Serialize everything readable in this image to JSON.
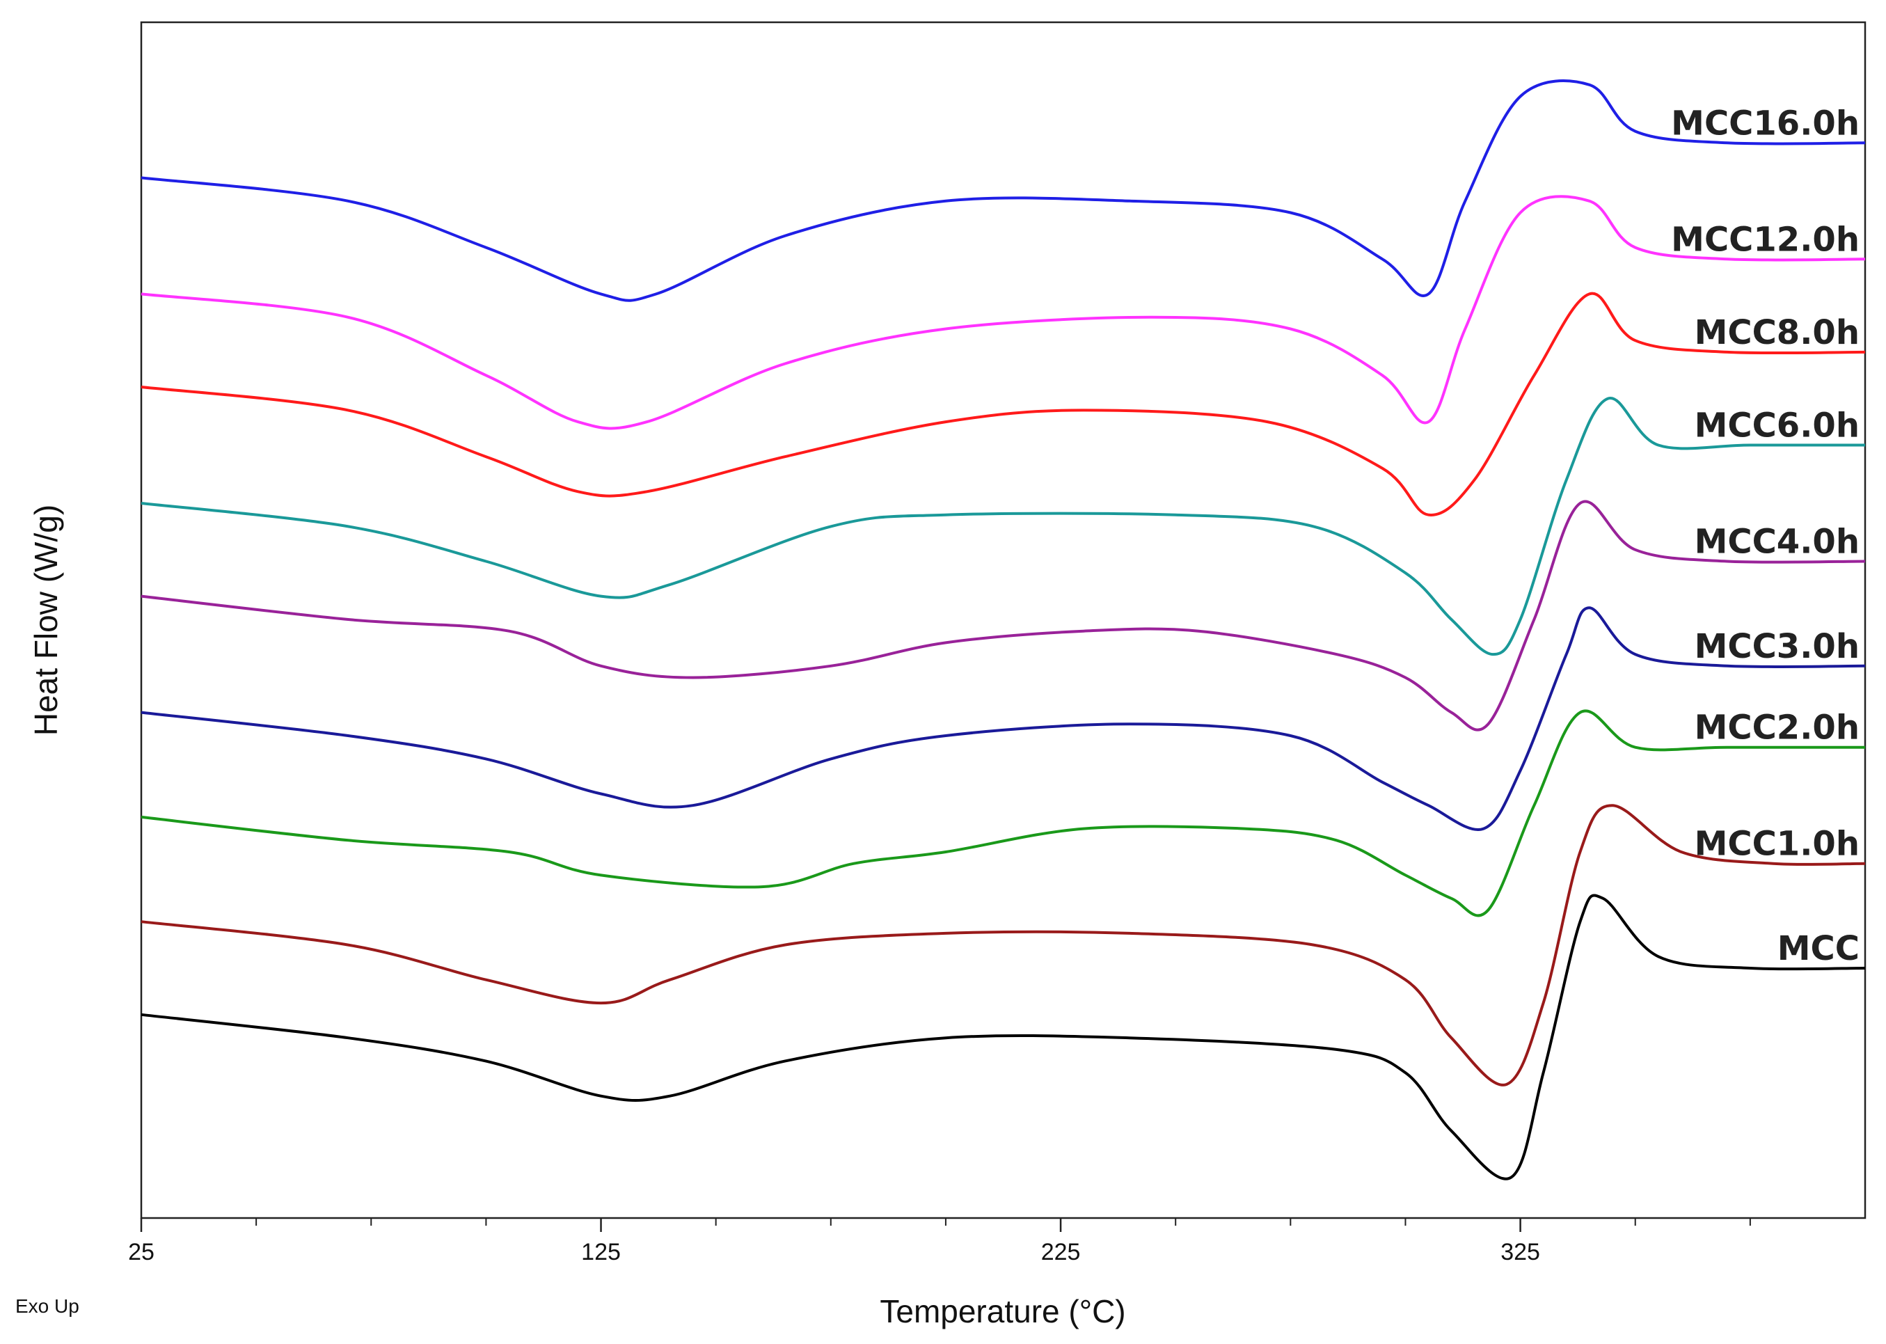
{
  "chart_data": {
    "type": "line",
    "title": "",
    "xlabel": "Temperature (°C)",
    "ylabel": "Heat Flow (W/g)",
    "corner_note": "Exo Up",
    "xlim": [
      25,
      400
    ],
    "ylim": [
      0,
      10
    ],
    "x_major_ticks": [
      25,
      125,
      225,
      325
    ],
    "x_minor_ticks": [
      50,
      75,
      100,
      150,
      175,
      200,
      250,
      275,
      300,
      350,
      375
    ],
    "y_ticks_shown": false,
    "grid": false,
    "legend": "inline labels at right end of each curve",
    "series": [
      {
        "name": "MCC16.0h",
        "color": "#1f1fe6",
        "points": [
          [
            25,
            8.8
          ],
          [
            70,
            8.6
          ],
          [
            100,
            8.2
          ],
          [
            125,
            7.8
          ],
          [
            137,
            7.8
          ],
          [
            165,
            8.3
          ],
          [
            200,
            8.6
          ],
          [
            240,
            8.6
          ],
          [
            275,
            8.5
          ],
          [
            295,
            8.1
          ],
          [
            305,
            7.8
          ],
          [
            313,
            8.6
          ],
          [
            325,
            9.5
          ],
          [
            340,
            9.6
          ],
          [
            350,
            9.2
          ],
          [
            370,
            9.1
          ],
          [
            400,
            9.1
          ]
        ]
      },
      {
        "name": "MCC12.0h",
        "color": "#ff33ff",
        "points": [
          [
            25,
            7.8
          ],
          [
            70,
            7.6
          ],
          [
            100,
            7.1
          ],
          [
            120,
            6.7
          ],
          [
            135,
            6.7
          ],
          [
            165,
            7.2
          ],
          [
            200,
            7.5
          ],
          [
            245,
            7.6
          ],
          [
            275,
            7.5
          ],
          [
            295,
            7.1
          ],
          [
            305,
            6.7
          ],
          [
            313,
            7.5
          ],
          [
            325,
            8.5
          ],
          [
            340,
            8.6
          ],
          [
            350,
            8.2
          ],
          [
            370,
            8.1
          ],
          [
            400,
            8.1
          ]
        ]
      },
      {
        "name": "MCC8.0h",
        "color": "#ff1a1a",
        "points": [
          [
            25,
            7.0
          ],
          [
            70,
            6.8
          ],
          [
            100,
            6.4
          ],
          [
            120,
            6.1
          ],
          [
            135,
            6.1
          ],
          [
            165,
            6.4
          ],
          [
            200,
            6.7
          ],
          [
            230,
            6.8
          ],
          [
            270,
            6.7
          ],
          [
            295,
            6.3
          ],
          [
            305,
            5.9
          ],
          [
            315,
            6.2
          ],
          [
            328,
            7.1
          ],
          [
            340,
            7.8
          ],
          [
            350,
            7.4
          ],
          [
            370,
            7.3
          ],
          [
            400,
            7.3
          ]
        ]
      },
      {
        "name": "MCC6.0h",
        "color": "#1a9999",
        "points": [
          [
            25,
            6.0
          ],
          [
            70,
            5.8
          ],
          [
            100,
            5.5
          ],
          [
            125,
            5.2
          ],
          [
            140,
            5.3
          ],
          [
            175,
            5.8
          ],
          [
            200,
            5.9
          ],
          [
            250,
            5.9
          ],
          [
            280,
            5.8
          ],
          [
            300,
            5.4
          ],
          [
            310,
            5.0
          ],
          [
            319,
            4.7
          ],
          [
            325,
            5.0
          ],
          [
            335,
            6.2
          ],
          [
            344,
            6.9
          ],
          [
            355,
            6.5
          ],
          [
            375,
            6.5
          ],
          [
            400,
            6.5
          ]
        ]
      },
      {
        "name": "MCC4.0h",
        "color": "#992299",
        "points": [
          [
            25,
            5.2
          ],
          [
            70,
            5.0
          ],
          [
            105,
            4.9
          ],
          [
            125,
            4.6
          ],
          [
            145,
            4.5
          ],
          [
            175,
            4.6
          ],
          [
            200,
            4.8
          ],
          [
            230,
            4.9
          ],
          [
            255,
            4.9
          ],
          [
            285,
            4.7
          ],
          [
            300,
            4.5
          ],
          [
            310,
            4.2
          ],
          [
            318,
            4.1
          ],
          [
            328,
            5.0
          ],
          [
            338,
            6.0
          ],
          [
            350,
            5.6
          ],
          [
            370,
            5.5
          ],
          [
            400,
            5.5
          ]
        ]
      },
      {
        "name": "MCC3.0h",
        "color": "#1a1a99",
        "points": [
          [
            25,
            4.2
          ],
          [
            70,
            4.0
          ],
          [
            100,
            3.8
          ],
          [
            125,
            3.5
          ],
          [
            145,
            3.4
          ],
          [
            175,
            3.8
          ],
          [
            200,
            4.0
          ],
          [
            240,
            4.1
          ],
          [
            275,
            4.0
          ],
          [
            295,
            3.6
          ],
          [
            305,
            3.4
          ],
          [
            317,
            3.2
          ],
          [
            325,
            3.7
          ],
          [
            335,
            4.7
          ],
          [
            340,
            5.1
          ],
          [
            350,
            4.7
          ],
          [
            370,
            4.6
          ],
          [
            400,
            4.6
          ]
        ]
      },
      {
        "name": "MCC2.0h",
        "color": "#1a991a",
        "points": [
          [
            25,
            3.3
          ],
          [
            70,
            3.1
          ],
          [
            105,
            3.0
          ],
          [
            125,
            2.8
          ],
          [
            160,
            2.7
          ],
          [
            180,
            2.9
          ],
          [
            200,
            3.0
          ],
          [
            230,
            3.2
          ],
          [
            265,
            3.2
          ],
          [
            285,
            3.1
          ],
          [
            300,
            2.8
          ],
          [
            310,
            2.6
          ],
          [
            318,
            2.5
          ],
          [
            328,
            3.4
          ],
          [
            338,
            4.2
          ],
          [
            350,
            3.9
          ],
          [
            370,
            3.9
          ],
          [
            400,
            3.9
          ]
        ]
      },
      {
        "name": "MCC1.0h",
        "color": "#991a1a",
        "points": [
          [
            25,
            2.4
          ],
          [
            70,
            2.2
          ],
          [
            100,
            1.9
          ],
          [
            125,
            1.7
          ],
          [
            140,
            1.9
          ],
          [
            165,
            2.2
          ],
          [
            200,
            2.3
          ],
          [
            240,
            2.3
          ],
          [
            280,
            2.2
          ],
          [
            300,
            1.9
          ],
          [
            310,
            1.4
          ],
          [
            322,
            1.0
          ],
          [
            330,
            1.7
          ],
          [
            338,
            3.0
          ],
          [
            345,
            3.4
          ],
          [
            360,
            3.0
          ],
          [
            380,
            2.9
          ],
          [
            400,
            2.9
          ]
        ]
      },
      {
        "name": "MCC",
        "color": "#000000",
        "points": [
          [
            25,
            1.6
          ],
          [
            70,
            1.4
          ],
          [
            100,
            1.2
          ],
          [
            125,
            0.9
          ],
          [
            140,
            0.9
          ],
          [
            165,
            1.2
          ],
          [
            200,
            1.4
          ],
          [
            240,
            1.4
          ],
          [
            285,
            1.3
          ],
          [
            300,
            1.1
          ],
          [
            310,
            0.6
          ],
          [
            323,
            0.2
          ],
          [
            330,
            1.1
          ],
          [
            338,
            2.4
          ],
          [
            343,
            2.6
          ],
          [
            355,
            2.1
          ],
          [
            375,
            2.0
          ],
          [
            400,
            2.0
          ]
        ]
      }
    ]
  }
}
